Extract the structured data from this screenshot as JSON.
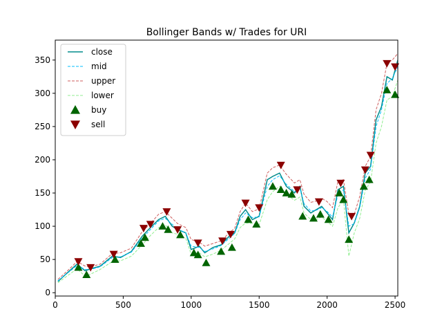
{
  "chart_data": {
    "type": "line",
    "title": "Bollinger Bands w/ Trades for URI",
    "xlabel": "",
    "ylabel": "",
    "xlim": [
      0,
      2520
    ],
    "ylim": [
      -5,
      380
    ],
    "xticks": [
      0,
      500,
      1000,
      1500,
      2000,
      2500
    ],
    "yticks": [
      0,
      50,
      100,
      150,
      200,
      250,
      300,
      350
    ],
    "grid": false,
    "legend_position": "top-left",
    "legend": [
      {
        "label": "close",
        "style": "line",
        "color": "#008b8b"
      },
      {
        "label": "mid",
        "style": "dashed",
        "color": "#00bfff"
      },
      {
        "label": "upper",
        "style": "dashed",
        "color": "#cd5c5c"
      },
      {
        "label": "lower",
        "style": "dashed",
        "color": "#90ee90"
      },
      {
        "label": "buy",
        "style": "triangle-up",
        "color": "#006400"
      },
      {
        "label": "sell",
        "style": "triangle-down",
        "color": "#8b0000"
      }
    ],
    "series": [
      {
        "name": "close",
        "color": "#008b8b",
        "dash": "",
        "x": [
          20,
          100,
          160,
          220,
          260,
          330,
          420,
          480,
          560,
          640,
          700,
          760,
          810,
          860,
          900,
          960,
          1000,
          1060,
          1100,
          1160,
          1220,
          1280,
          1320,
          1360,
          1400,
          1450,
          1500,
          1560,
          1600,
          1650,
          1700,
          1760,
          1800,
          1830,
          1880,
          1920,
          1960,
          2000,
          2040,
          2080,
          2120,
          2160,
          2200,
          2240,
          2280,
          2320,
          2360,
          2400,
          2440,
          2480,
          2520
        ],
        "y": [
          17,
          32,
          43,
          33,
          36,
          40,
          55,
          53,
          62,
          85,
          98,
          110,
          115,
          100,
          95,
          90,
          65,
          70,
          60,
          68,
          72,
          85,
          90,
          115,
          125,
          110,
          115,
          170,
          175,
          180,
          160,
          150,
          160,
          130,
          120,
          125,
          130,
          120,
          110,
          155,
          160,
          90,
          105,
          130,
          180,
          190,
          260,
          280,
          325,
          320,
          350
        ]
      },
      {
        "name": "mid",
        "color": "#00bfff",
        "dash": "4,2",
        "x": [
          20,
          100,
          160,
          220,
          260,
          330,
          420,
          480,
          560,
          640,
          700,
          760,
          810,
          860,
          900,
          960,
          1000,
          1060,
          1100,
          1160,
          1220,
          1280,
          1320,
          1360,
          1400,
          1450,
          1500,
          1560,
          1600,
          1650,
          1700,
          1760,
          1800,
          1830,
          1880,
          1920,
          1960,
          2000,
          2040,
          2080,
          2120,
          2160,
          2200,
          2240,
          2280,
          2320,
          2360,
          2400,
          2440,
          2480,
          2520
        ],
        "y": [
          18,
          31,
          41,
          35,
          35,
          39,
          53,
          54,
          61,
          82,
          95,
          108,
          112,
          103,
          96,
          90,
          70,
          68,
          62,
          66,
          71,
          82,
          89,
          110,
          120,
          113,
          114,
          160,
          170,
          176,
          163,
          152,
          157,
          134,
          123,
          124,
          128,
          122,
          114,
          148,
          155,
          100,
          104,
          128,
          172,
          186,
          250,
          275,
          315,
          322,
          340
        ]
      },
      {
        "name": "upper",
        "color": "#cd5c5c",
        "dash": "4,2",
        "x": [
          20,
          100,
          160,
          220,
          260,
          330,
          420,
          480,
          560,
          640,
          700,
          760,
          810,
          860,
          900,
          960,
          1000,
          1060,
          1100,
          1160,
          1220,
          1280,
          1320,
          1360,
          1400,
          1450,
          1500,
          1560,
          1600,
          1650,
          1700,
          1760,
          1800,
          1830,
          1880,
          1920,
          1960,
          2000,
          2040,
          2080,
          2120,
          2160,
          2200,
          2240,
          2280,
          2320,
          2360,
          2400,
          2440,
          2480,
          2520
        ],
        "y": [
          20,
          35,
          47,
          40,
          39,
          43,
          59,
          60,
          67,
          92,
          104,
          118,
          122,
          112,
          104,
          98,
          80,
          76,
          70,
          74,
          78,
          90,
          97,
          122,
          135,
          122,
          126,
          180,
          188,
          192,
          178,
          165,
          170,
          148,
          136,
          138,
          142,
          137,
          128,
          168,
          170,
          118,
          118,
          145,
          190,
          205,
          275,
          300,
          345,
          350,
          360
        ]
      },
      {
        "name": "lower",
        "color": "#90ee90",
        "dash": "4,2",
        "x": [
          20,
          100,
          160,
          220,
          260,
          330,
          420,
          480,
          560,
          640,
          700,
          760,
          810,
          860,
          900,
          960,
          1000,
          1060,
          1100,
          1160,
          1220,
          1280,
          1320,
          1360,
          1400,
          1450,
          1500,
          1560,
          1600,
          1650,
          1700,
          1760,
          1800,
          1830,
          1880,
          1920,
          1960,
          2000,
          2040,
          2080,
          2120,
          2160,
          2200,
          2240,
          2280,
          2320,
          2360,
          2400,
          2440,
          2480,
          2520
        ],
        "y": [
          15,
          27,
          36,
          25,
          28,
          35,
          47,
          48,
          55,
          72,
          86,
          98,
          102,
          90,
          88,
          82,
          58,
          60,
          54,
          58,
          64,
          74,
          81,
          98,
          105,
          104,
          102,
          140,
          152,
          160,
          148,
          139,
          144,
          120,
          110,
          110,
          114,
          107,
          100,
          128,
          140,
          55,
          90,
          112,
          154,
          167,
          225,
          250,
          290,
          295,
          320
        ]
      },
      {
        "name": "buy",
        "color": "#006400",
        "marker": "triangle-up",
        "x": [
          170,
          230,
          440,
          630,
          660,
          790,
          830,
          920,
          1020,
          1050,
          1110,
          1220,
          1300,
          1420,
          1480,
          1600,
          1660,
          1700,
          1740,
          1820,
          1900,
          1950,
          2010,
          2090,
          2120,
          2160,
          2270,
          2310,
          2440,
          2500
        ],
        "y": [
          38,
          27,
          50,
          74,
          83,
          100,
          95,
          87,
          60,
          57,
          45,
          62,
          68,
          110,
          103,
          160,
          155,
          150,
          148,
          115,
          112,
          118,
          110,
          150,
          140,
          80,
          160,
          170,
          305,
          298
        ]
      },
      {
        "name": "sell",
        "color": "#8b0000",
        "marker": "triangle-down",
        "x": [
          170,
          260,
          430,
          650,
          700,
          820,
          900,
          1050,
          1230,
          1290,
          1400,
          1500,
          1660,
          1780,
          1940,
          2100,
          2180,
          2280,
          2320,
          2440,
          2500
        ],
        "y": [
          47,
          38,
          58,
          97,
          103,
          122,
          95,
          75,
          78,
          88,
          135,
          128,
          192,
          155,
          137,
          165,
          115,
          185,
          207,
          345,
          340
        ]
      }
    ]
  }
}
